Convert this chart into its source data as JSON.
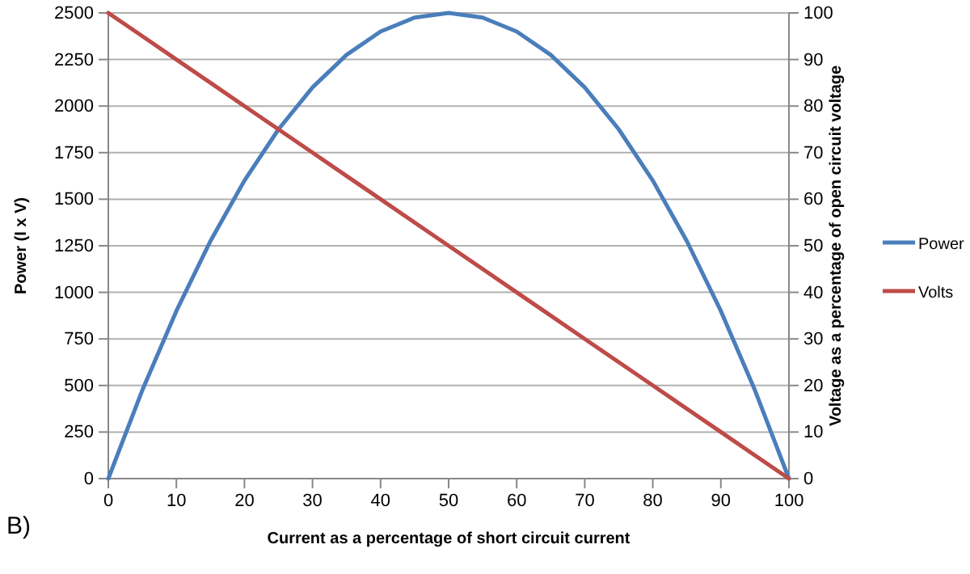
{
  "chart_data": {
    "type": "line",
    "xlabel": "Current as a percentage of short circuit current",
    "ylabel": "Power (I x V)",
    "y2label": "Voltage as a percentage of open circuit voltage",
    "x": [
      0,
      5,
      10,
      15,
      20,
      25,
      30,
      35,
      40,
      45,
      50,
      55,
      60,
      65,
      70,
      75,
      80,
      85,
      90,
      95,
      100
    ],
    "series": [
      {
        "name": "Power",
        "color": "#4a7ebb",
        "values": [
          0,
          475,
          900,
          1275,
          1600,
          1875,
          2100,
          2275,
          2400,
          2475,
          2500,
          2475,
          2400,
          2275,
          2100,
          1875,
          1600,
          1275,
          900,
          475,
          0
        ]
      },
      {
        "name": "Volts",
        "color": "#be4b48",
        "axis": "y2",
        "values": [
          100,
          95,
          90,
          85,
          80,
          75,
          70,
          65,
          60,
          55,
          50,
          45,
          40,
          35,
          30,
          25,
          20,
          15,
          10,
          5,
          0
        ]
      }
    ],
    "xlim": [
      0,
      100
    ],
    "xticks": [
      0,
      10,
      20,
      30,
      40,
      50,
      60,
      70,
      80,
      90,
      100
    ],
    "ylim": [
      0,
      2500
    ],
    "yticks": [
      0,
      250,
      500,
      750,
      1000,
      1250,
      1500,
      1750,
      2000,
      2250,
      2500
    ],
    "y2lim": [
      0,
      100
    ],
    "y2ticks": [
      0,
      10,
      20,
      30,
      40,
      50,
      60,
      70,
      80,
      90,
      100
    ],
    "grid": "y",
    "legend": "right",
    "marker": "none",
    "line_style": "solid",
    "annotations": [
      "B)"
    ]
  }
}
